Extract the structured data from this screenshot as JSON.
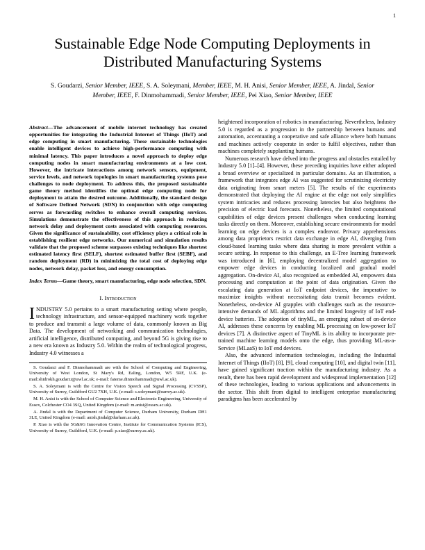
{
  "pageNumber": "1",
  "title": "Sustainable Edge Node Computing Deployments in Distributed Manufacturing Systems",
  "authorsHtml": "S. Goudarzi, <i>Senior Member, IEEE</i>, S. A. Soleymani, <i>Member, IEEE</i>, M. H. Anisi, <i>Senior Member, IEEE</i>, A. Jindal, <i>Senior Member, IEEE</i>, F. Dinmohammadi, <i>Senior Member, IEEE</i>, Pei Xiao, <i>Senior Member, IEEE</i>",
  "abstractLabel": "Abstract—",
  "abstractText": "The advancement of mobile internet technology has created opportunities for integrating the Industrial Internet of Things (IIoT) and edge computing in smart manufacturing. These sustainable technologies enable intelligent devices to achieve high-performance computing with minimal latency. This paper introduces a novel approach to deploy edge computing nodes in smart manufacturing environments at a low cost. However, the intricate interactions among network sensors, equipment, service levels, and network topologies in smart manufacturing systems pose challenges to node deployment. To address this, the proposed sustainable game theory method identifies the optimal edge computing node for deployment to attain the desired outcome. Additionally, the standard design of Software Defined Network (SDN) in conjunction with edge computing serves as forwarding switches to enhance overall computing services. Simulations demonstrate the effectiveness of this approach in reducing network delay and deployment costs associated with computing resources. Given the significance of sustainability, cost efficiency plays a critical role in establishing resilient edge networks. Our numerical and simulation results validate that the proposed scheme surpasses existing techniques like shortest estimated latency first (SELF), shortest estimated buffer first (SEBF), and random deployment (RD) in minimizing the total cost of deploying edge nodes, network delay, packet loss, and energy consumption.",
  "indexTermsLabel": "Index Terms—",
  "indexTermsText": "Game theory, smart manufacturing, edge node selection, SDN.",
  "sectionHead": "I. Introduction",
  "dropcap": "I",
  "introFirstPart": "NDUSTRY 5.0 pertains to a smart manufacturing setting where people, technology infrastructure, and sensor-equipped machinery work together to produce and transmit a large volume of data, commonly known as Big Data. The development of networking and communication technologies, artificial intelligence, distributed computing, and beyond 5G is giving rise to a new era known as Industry 5.0. Within the realm of technological progress, Industry 4.0 witnesses a",
  "footnotes": [
    "S. Goudarzi and F. Dinmohammadi are with the School of Computing and Engineering, University of West London, St Mary's Rd, Ealing, London, W5 5RF, U.K. (e-mail:shidrokh.goudarzi@uwl.ac.uk; e-mail: fateme.dinmohammadi@uwl.ac.uk).",
    "S. A. Soleymani is with the Centre for Vision Speech and Signal Processing (CVSSP), University of Surrey, Guildford GU2 7XH, U.K. (e-mail: s.soleymani@surrey.ac.uk).",
    "M. H. Anisi is with the School of Computer Science and Electronic Engineering, University of Essex, Colchester CO4 3SQ, United Kingdom (e-mail: m.anisi@essex.ac.uk).",
    "A. Jindal is with the Department of Computer Science, Durham University, Durham DH1 3LE, United Kingdom (e-mail: anish.jindal@durham.ac.uk).",
    "P. Xiao is with the 5G&6G Innovation Centre, Institute for Communication Systems (ICS), University of Surrey, Guildford, U.K. (e-mail: p.xiao@surrey.ac.uk)."
  ],
  "rightCol": [
    "heightened incorporation of robotics in manufacturing. Nevertheless, Industry 5.0 is regarded as a progression in the partnership between humans and automation, accentuating a cooperative and safe alliance where both humans and machines actively cooperate in order to fulfil objectives, rather than machines completely supplanting humans.",
    "Numerous research have delved into the progress and obstacles entailed by Industry 5.0 [1]–[4]. However, these preceding inquiries have either adopted a broad overview or specialized in particular domains. As an illustration, a framework that integrates edge AI was suggested for scrutinizing electricity data originating from smart meters [5]. The results of the experiments demonstrated that deploying the AI engine at the edge not only simplifies system intricacies and reduces processing latencies but also heightens the precision of electric load forecasts. Nonetheless, the limited computational capabilities of edge devices present challenges when conducting learning tasks directly on them. Moreover, establishing secure environments for model learning on edge devices is a complex endeavor. Privacy apprehensions among data proprietors restrict data exchange in edge AI, diverging from cloud-based learning tasks where data sharing is more prevalent within a secure setting. In response to this challenge, an E-Tree learning framework was introduced in [6], employing decentralized model aggregation to empower edge devices in conducting localized and gradual model aggregation. On-device AI, also recognized as embedded AI, empowers data processing and computation at the point of data origination. Given the escalating data generation at IoT endpoint devices, the imperative to maximize insights without necessitating data transit becomes evident. Nonetheless, on-device AI grapples with challenges such as the resource-intensive demands of ML algorithms and the limited longevity of IoT end-device batteries. The adoption of tinyML, an emerging subset of on-device AI, addresses these concerns by enabling ML processing on low-power IoT devices [7]. A distinctive aspect of TinyML is its ability to incorporate pre-trained machine learning models onto the edge, thus providing ML-as-a-Service (MLaaS) to IoT end devices.",
    "Also, the advanced information technologies, including the Industrial Internet of Things (IIoT) [8], [9], cloud computing [10], and digital twin [11], have gained significant traction within the manufacturing industry. As a result, there has been rapid development and widespread implementation [12] of these technologies, leading to various applications and advancements in the sector. This shift from digital to intelligent enterprise manufacturing paradigms has been accelerated by"
  ]
}
